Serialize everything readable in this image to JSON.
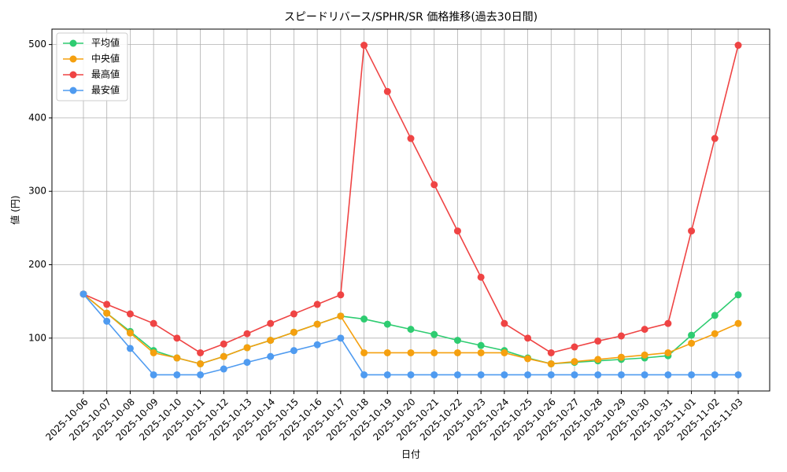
{
  "chart_data": {
    "type": "line",
    "title": "スピードリバース/SPHR/SR 価格推移(過去30日間)",
    "x_label": "日付",
    "y_label": "値 (円)",
    "categories": [
      "2025-10-06",
      "2025-10-07",
      "2025-10-08",
      "2025-10-09",
      "2025-10-10",
      "2025-10-11",
      "2025-10-12",
      "2025-10-13",
      "2025-10-14",
      "2025-10-15",
      "2025-10-16",
      "2025-10-17",
      "2025-10-18",
      "2025-10-19",
      "2025-10-20",
      "2025-10-21",
      "2025-10-22",
      "2025-10-23",
      "2025-10-24",
      "2025-10-25",
      "2025-10-26",
      "2025-10-27",
      "2025-10-28",
      "2025-10-29",
      "2025-10-30",
      "2025-10-31",
      "2025-11-01",
      "2025-11-02",
      "2025-11-03"
    ],
    "series": [
      {
        "name": "平均値",
        "color": "#2ecc71",
        "values": [
          160,
          134,
          109,
          83,
          73,
          65,
          75,
          87,
          97,
          108,
          119,
          130,
          126,
          119,
          112,
          105,
          97,
          90,
          83,
          73,
          65,
          67,
          69,
          71,
          73,
          76,
          104,
          131,
          159
        ]
      },
      {
        "name": "中央値",
        "color": "#f5a00f",
        "values": [
          160,
          134,
          107,
          80,
          73,
          65,
          75,
          87,
          97,
          108,
          119,
          130,
          80,
          80,
          80,
          80,
          80,
          80,
          80,
          72,
          65,
          68,
          71,
          74,
          77,
          80,
          93,
          106,
          120
        ]
      },
      {
        "name": "最高値",
        "color": "#ef4444",
        "values": [
          160,
          146,
          133,
          120,
          100,
          80,
          92,
          106,
          120,
          133,
          146,
          159,
          499,
          436,
          372,
          309,
          246,
          183,
          120,
          100,
          80,
          88,
          96,
          103,
          112,
          120,
          246,
          372,
          499
        ]
      },
      {
        "name": "最安値",
        "color": "#4f9bf0",
        "values": [
          160,
          123,
          86,
          50,
          50,
          50,
          58,
          67,
          75,
          83,
          91,
          100,
          50,
          50,
          50,
          50,
          50,
          50,
          50,
          50,
          50,
          50,
          50,
          50,
          50,
          50,
          50,
          50,
          50
        ]
      }
    ],
    "ylim": [
      28,
      521
    ],
    "yticks": [
      100,
      200,
      300,
      400,
      500
    ],
    "grid": true,
    "legend": "upper left"
  }
}
